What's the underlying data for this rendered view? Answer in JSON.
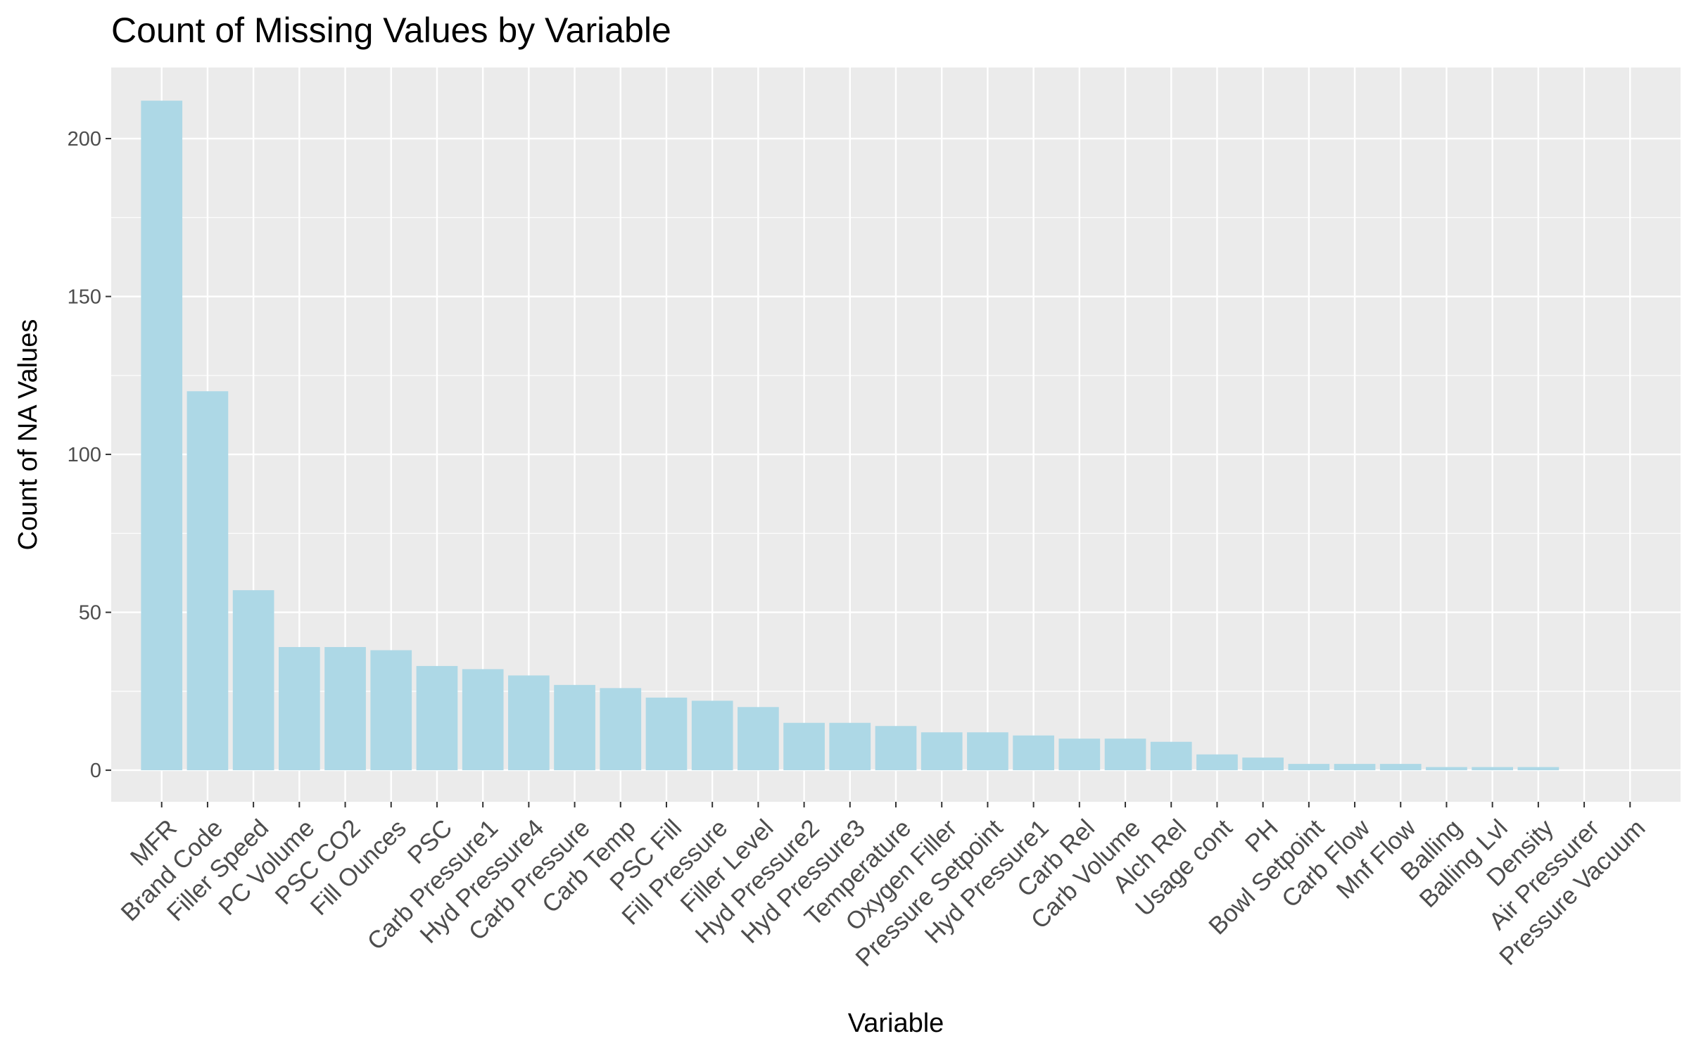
{
  "chart_data": {
    "type": "bar",
    "title": "Count of Missing Values by Variable",
    "xlabel": "Variable",
    "ylabel": "Count of NA Values",
    "categories": [
      "MFR",
      "Brand Code",
      "Filler Speed",
      "PC Volume",
      "PSC CO2",
      "Fill Ounces",
      "PSC",
      "Carb Pressure1",
      "Hyd Pressure4",
      "Carb Pressure",
      "Carb Temp",
      "PSC Fill",
      "Fill Pressure",
      "Filler Level",
      "Hyd Pressure2",
      "Hyd Pressure3",
      "Temperature",
      "Oxygen Filler",
      "Pressure Setpoint",
      "Hyd Pressure1",
      "Carb Rel",
      "Carb Volume",
      "Alch Rel",
      "Usage cont",
      "PH",
      "Bowl Setpoint",
      "Carb Flow",
      "Mnf Flow",
      "Balling",
      "Balling Lvl",
      "Density",
      "Air Pressurer",
      "Pressure Vacuum"
    ],
    "values": [
      212,
      120,
      57,
      39,
      39,
      38,
      33,
      32,
      30,
      27,
      26,
      23,
      22,
      20,
      15,
      15,
      14,
      12,
      12,
      11,
      10,
      10,
      9,
      5,
      4,
      2,
      2,
      2,
      1,
      1,
      1,
      0,
      0
    ],
    "ylim": [
      -10,
      222.5
    ],
    "yticks": [
      0,
      50,
      100,
      150,
      200
    ],
    "grid": true,
    "legend": "none",
    "colors": {
      "bar": "#add8e6",
      "panel": "#ebebeb",
      "grid_major": "#ffffff",
      "tick_text": "#4d4d4d",
      "tick_mark": "#333333"
    }
  }
}
